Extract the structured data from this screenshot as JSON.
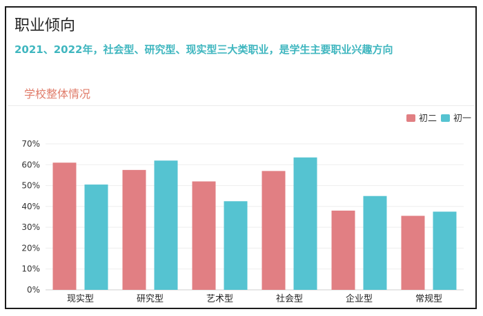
{
  "header": {
    "title": "职业倾向",
    "subtitle": "2021、2022年，社会型、研究型、现实型三大类职业，是学生主要职业兴趣方向"
  },
  "section": {
    "label": "学校整体情况"
  },
  "colors": {
    "series1": "#e17f83",
    "series2": "#55c3d1",
    "subtitle": "#3fb6bf",
    "section": "#e07c6a"
  },
  "chart_data": {
    "type": "bar",
    "categories": [
      "现实型",
      "研究型",
      "艺术型",
      "社会型",
      "企业型",
      "常规型"
    ],
    "series": [
      {
        "name": "初二",
        "values": [
          61,
          57.5,
          52,
          57,
          38,
          35.5
        ],
        "color": "#e17f83"
      },
      {
        "name": "初一",
        "values": [
          50.5,
          62,
          42.5,
          63.5,
          45,
          37.5
        ],
        "color": "#55c3d1"
      }
    ],
    "ylim": [
      0,
      70
    ],
    "yticks": [
      0,
      10,
      20,
      30,
      40,
      50,
      60,
      70
    ],
    "ytick_format": "percent",
    "legend_position": "top-right",
    "grid": true
  }
}
